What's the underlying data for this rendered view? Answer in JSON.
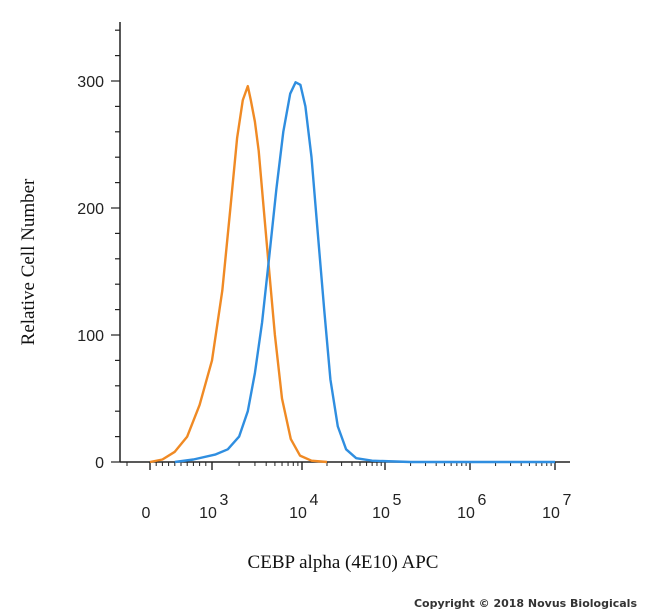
{
  "chart_data": {
    "type": "line",
    "title": "",
    "xlabel": "CEBP alpha (4E10) APC",
    "ylabel": "Relative Cell Number",
    "xscale": "biexponential",
    "xlim": [
      -100,
      10000000
    ],
    "ylim": [
      0,
      345
    ],
    "grid": false,
    "legend": "none",
    "y_ticks": [
      {
        "value": 0,
        "label": "0"
      },
      {
        "value": 100,
        "label": "100"
      },
      {
        "value": 200,
        "label": "200"
      },
      {
        "value": 300,
        "label": "300"
      }
    ],
    "x_ticks": [
      {
        "value": 0,
        "base": "0",
        "exp": ""
      },
      {
        "value": 1000,
        "base": "10",
        "exp": "3"
      },
      {
        "value": 10000,
        "base": "10",
        "exp": "4"
      },
      {
        "value": 100000,
        "base": "10",
        "exp": "5"
      },
      {
        "value": 1000000,
        "base": "10",
        "exp": "6"
      },
      {
        "value": 10000000,
        "base": "10",
        "exp": "7"
      }
    ],
    "series": [
      {
        "color": "#f08a24",
        "points": [
          [
            0,
            0
          ],
          [
            200,
            2
          ],
          [
            400,
            8
          ],
          [
            600,
            20
          ],
          [
            800,
            45
          ],
          [
            1000,
            80
          ],
          [
            1300,
            135
          ],
          [
            1600,
            200
          ],
          [
            1900,
            255
          ],
          [
            2200,
            285
          ],
          [
            2500,
            296
          ],
          [
            2700,
            285
          ],
          [
            3000,
            268
          ],
          [
            3300,
            245
          ],
          [
            3700,
            205
          ],
          [
            4200,
            160
          ],
          [
            5000,
            100
          ],
          [
            6000,
            50
          ],
          [
            7500,
            18
          ],
          [
            9500,
            5
          ],
          [
            13000,
            1
          ],
          [
            20000,
            0
          ]
        ]
      },
      {
        "color": "#2f8ee0",
        "points": [
          [
            400,
            0
          ],
          [
            700,
            2
          ],
          [
            1100,
            6
          ],
          [
            1500,
            10
          ],
          [
            2000,
            20
          ],
          [
            2500,
            40
          ],
          [
            3000,
            70
          ],
          [
            3600,
            110
          ],
          [
            4300,
            160
          ],
          [
            5200,
            215
          ],
          [
            6200,
            260
          ],
          [
            7400,
            290
          ],
          [
            8500,
            299
          ],
          [
            9600,
            297
          ],
          [
            11000,
            280
          ],
          [
            13000,
            240
          ],
          [
            15500,
            180
          ],
          [
            18500,
            120
          ],
          [
            22000,
            65
          ],
          [
            27000,
            28
          ],
          [
            34000,
            10
          ],
          [
            45000,
            3
          ],
          [
            70000,
            1
          ],
          [
            200000,
            0
          ],
          [
            10000000,
            0
          ]
        ]
      }
    ]
  },
  "copyright": "Copyright © 2018 Novus Biologicals"
}
